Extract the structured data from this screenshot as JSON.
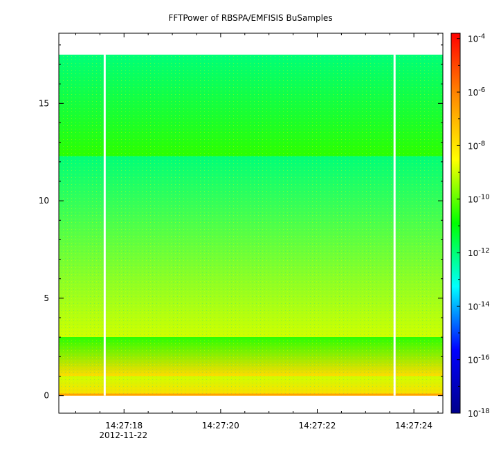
{
  "chart_data": {
    "type": "heatmap",
    "title": "FFTPower of RBSPA/EMFISIS  BuSamples",
    "xlabel": "",
    "ylabel": "",
    "x_ticks": [
      "14:27:18",
      "14:27:20",
      "14:27:22",
      "14:27:24"
    ],
    "x_date_label": "2012-11-22",
    "x_range_seconds": [
      16.65,
      24.6
    ],
    "y_ticks": [
      "0",
      "5",
      "10",
      "15"
    ],
    "ylim": [
      -0.9,
      18.6
    ],
    "data_ylim": [
      0,
      17.5
    ],
    "colorbar": {
      "scale": "log",
      "range": [
        -18,
        -3.8
      ],
      "ticks": [
        {
          "base": "10",
          "exp": "-4",
          "value": -4
        },
        {
          "base": "10",
          "exp": "-6",
          "value": -6
        },
        {
          "base": "10",
          "exp": "-8",
          "value": -8
        },
        {
          "base": "10",
          "exp": "-10",
          "value": -10
        },
        {
          "base": "10",
          "exp": "-12",
          "value": -12
        },
        {
          "base": "10",
          "exp": "-14",
          "value": -14
        },
        {
          "base": "10",
          "exp": "-16",
          "value": -16
        },
        {
          "base": "10",
          "exp": "-18",
          "value": -18
        }
      ],
      "colors": [
        "#00008b",
        "#0000ff",
        "#00ffff",
        "#00ff00",
        "#ffff00",
        "#ff8c00",
        "#ff0000"
      ]
    },
    "data_gaps_seconds": [
      17.6,
      23.6
    ],
    "bands": [
      {
        "y_from": 12.3,
        "y_to": 17.5,
        "log_power": -12.0
      },
      {
        "y_from": 3.0,
        "y_to": 12.3,
        "log_power": -10.5
      },
      {
        "y_from": 1.0,
        "y_to": 3.0,
        "log_power": -9.0
      },
      {
        "y_from": 0.0,
        "y_to": 1.0,
        "log_power": -7.8
      }
    ],
    "grid": false,
    "legend": "colorbar right"
  }
}
